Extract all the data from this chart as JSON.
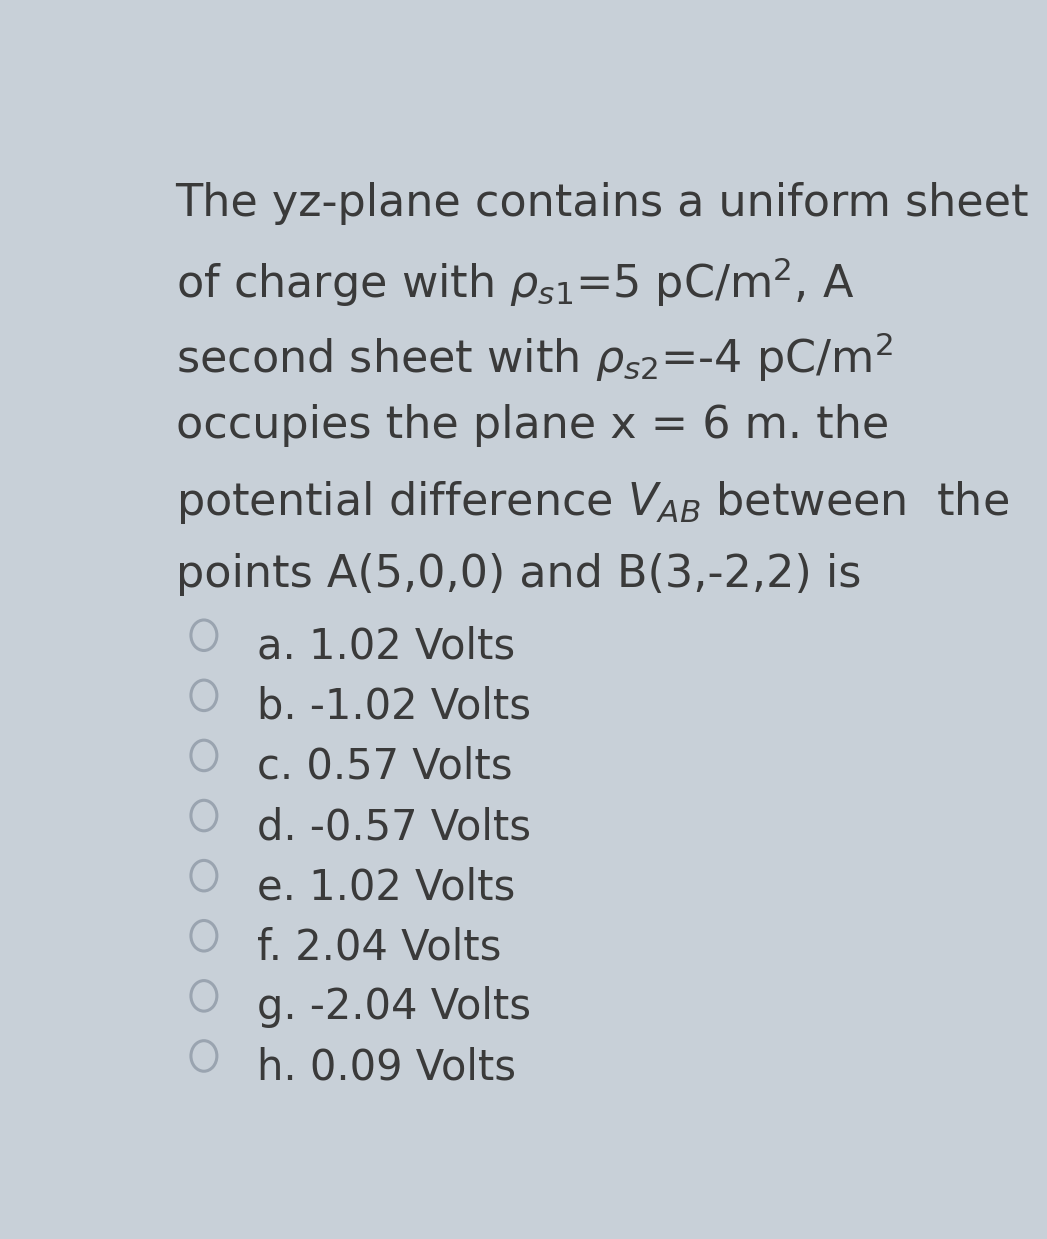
{
  "background_color": "#c8d0d8",
  "card_color": "#dde3ea",
  "text_color": "#3a3a3a",
  "options": [
    "a. 1.02 Volts",
    "b. -1.02 Volts",
    "c. 0.57 Volts",
    "d. -0.57 Volts",
    "e. 1.02 Volts",
    "f. 2.04 Volts",
    "g. -2.04 Volts",
    "h. 0.09 Volts"
  ],
  "circle_color": "#9aa4b0",
  "title_fontsize": 32,
  "option_fontsize": 30
}
